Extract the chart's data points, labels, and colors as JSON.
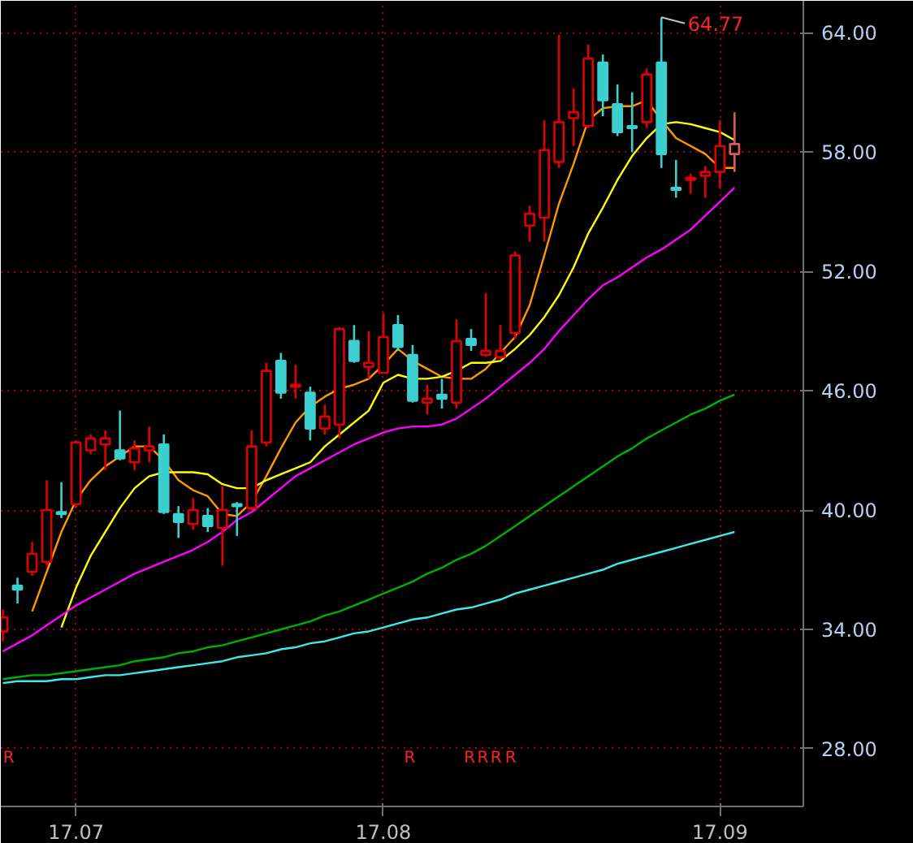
{
  "chart_data": {
    "type": "candlestick",
    "categories": [
      null,
      null,
      null,
      null,
      null,
      "17.07",
      null,
      null,
      null,
      null,
      null,
      null,
      null,
      null,
      null,
      null,
      null,
      null,
      null,
      null,
      null,
      null,
      null,
      null,
      null,
      null,
      "17.08",
      null,
      null,
      null,
      null,
      null,
      null,
      null,
      null,
      null,
      null,
      null,
      null,
      null,
      null,
      null,
      null,
      null,
      null,
      null,
      null,
      null,
      null,
      "17.09",
      null
    ],
    "ohlc": [
      [
        33.9,
        35.0,
        33.4,
        34.6
      ],
      [
        36.2,
        36.6,
        35.3,
        36.0
      ],
      [
        36.9,
        38.4,
        36.7,
        37.8
      ],
      [
        37.4,
        41.5,
        37.2,
        40.0
      ],
      [
        39.9,
        41.4,
        39.6,
        39.8
      ],
      [
        40.3,
        43.5,
        40.1,
        43.4
      ],
      [
        43.0,
        43.8,
        42.8,
        43.6
      ],
      [
        43.3,
        44.0,
        42.0,
        43.6
      ],
      [
        43.0,
        45.0,
        42.5,
        42.6
      ],
      [
        42.4,
        43.5,
        42.0,
        43.1
      ],
      [
        43.0,
        44.2,
        42.4,
        43.2
      ],
      [
        43.3,
        43.8,
        39.8,
        39.9
      ],
      [
        39.8,
        40.2,
        38.6,
        39.4
      ],
      [
        39.3,
        40.6,
        39.0,
        40.0
      ],
      [
        39.7,
        40.1,
        38.9,
        39.2
      ],
      [
        39.1,
        41.2,
        37.2,
        40.0
      ],
      [
        40.3,
        40.4,
        38.7,
        40.2
      ],
      [
        40.1,
        44.0,
        40.0,
        43.2
      ],
      [
        43.4,
        47.4,
        43.2,
        47.0
      ],
      [
        47.5,
        47.9,
        45.6,
        45.9
      ],
      [
        46.2,
        47.3,
        45.6,
        46.3
      ],
      [
        45.9,
        46.2,
        43.5,
        44.1
      ],
      [
        44.1,
        45.3,
        43.8,
        44.7
      ],
      [
        44.3,
        49.2,
        43.6,
        49.1
      ],
      [
        48.5,
        49.3,
        47.4,
        47.5
      ],
      [
        47.2,
        49.0,
        46.6,
        47.4
      ],
      [
        46.9,
        49.9,
        46.9,
        48.7
      ],
      [
        49.3,
        49.8,
        48.0,
        48.2
      ],
      [
        47.8,
        48.3,
        45.4,
        45.5
      ],
      [
        45.4,
        46.3,
        44.8,
        45.6
      ],
      [
        45.8,
        46.6,
        45.1,
        45.6
      ],
      [
        45.4,
        49.6,
        45.1,
        48.5
      ],
      [
        48.6,
        49.1,
        48.0,
        48.3
      ],
      [
        47.8,
        50.9,
        47.7,
        48.0
      ],
      [
        47.7,
        49.3,
        47.6,
        48.0
      ],
      [
        48.9,
        53.0,
        48.6,
        52.8
      ],
      [
        54.3,
        55.3,
        53.5,
        54.9
      ],
      [
        54.7,
        59.6,
        53.5,
        58.1
      ],
      [
        57.5,
        63.9,
        57.2,
        59.5
      ],
      [
        59.7,
        61.2,
        58.3,
        60.0
      ],
      [
        59.3,
        63.4,
        59.2,
        62.7
      ],
      [
        62.5,
        62.9,
        59.8,
        60.6
      ],
      [
        60.4,
        61.4,
        58.8,
        59.0
      ],
      [
        59.3,
        61.0,
        58.0,
        59.2
      ],
      [
        59.5,
        62.2,
        59.2,
        61.9
      ],
      [
        62.5,
        64.77,
        57.2,
        57.9
      ],
      [
        56.2,
        57.6,
        55.7,
        56.1
      ],
      [
        56.6,
        56.9,
        55.9,
        56.7
      ],
      [
        56.8,
        57.3,
        55.7,
        57.0
      ],
      [
        57.0,
        59.6,
        56.2,
        58.3
      ],
      [
        57.9,
        60.0,
        57.0,
        58.4
      ]
    ],
    "colors": [
      "#e00000",
      "#3ccfcf",
      "#e00000",
      "#e00000",
      "#3ccfcf",
      "#e00000",
      "#e00000",
      "#e00000",
      "#3ccfcf",
      "#e00000",
      "#e00000",
      "#3ccfcf",
      "#3ccfcf",
      "#e00000",
      "#3ccfcf",
      "#e00000",
      "#3ccfcf",
      "#e00000",
      "#e00000",
      "#3ccfcf",
      "#e00000",
      "#3ccfcf",
      "#e00000",
      "#e00000",
      "#3ccfcf",
      "#e00000",
      "#e00000",
      "#3ccfcf",
      "#3ccfcf",
      "#e00000",
      "#3ccfcf",
      "#e00000",
      "#3ccfcf",
      "#e00000",
      "#e00000",
      "#e00000",
      "#e00000",
      "#e00000",
      "#e00000",
      "#e00000",
      "#e00000",
      "#3ccfcf",
      "#3ccfcf",
      "#3ccfcf",
      "#e00000",
      "#3ccfcf",
      "#3ccfcf",
      "#e00000",
      "#e00000",
      "#e00000",
      "#e05858"
    ],
    "series": [
      {
        "type": "line",
        "color": "#ff9900",
        "values": [
          null,
          null,
          34.9,
          36.9,
          38.9,
          40.5,
          41.5,
          42.2,
          42.7,
          43.2,
          43.2,
          42.5,
          41.5,
          41.0,
          40.7,
          39.8,
          39.7,
          40.4,
          41.7,
          43.1,
          44.4,
          45.2,
          45.7,
          46.1,
          46.3,
          46.6,
          47.3,
          48.1,
          47.5,
          47.1,
          46.7,
          46.6,
          46.6,
          47.1,
          47.9,
          48.7,
          50.3,
          52.8,
          55.4,
          57.4,
          59.6,
          60.2,
          60.3,
          60.3,
          60.6,
          59.6,
          58.7,
          58.3,
          57.9,
          57.2,
          57.2
        ]
      },
      {
        "type": "line",
        "color": "#ffff00",
        "values": [
          null,
          null,
          null,
          null,
          34.1,
          36.1,
          37.7,
          38.9,
          40.1,
          41.1,
          41.7,
          41.9,
          41.9,
          41.9,
          41.8,
          41.3,
          41.1,
          41.1,
          41.5,
          41.8,
          42.1,
          42.4,
          43.2,
          43.8,
          44.4,
          45.0,
          46.4,
          46.8,
          46.6,
          46.6,
          46.7,
          47.0,
          47.4,
          47.4,
          47.5,
          48.1,
          48.8,
          49.7,
          50.8,
          52.2,
          53.9,
          55.2,
          56.6,
          57.8,
          58.7,
          59.4,
          59.5,
          59.4,
          59.2,
          59.0,
          58.6
        ]
      },
      {
        "type": "line",
        "color": "#ff00ff",
        "values": [
          32.9,
          33.3,
          33.7,
          34.2,
          34.7,
          35.2,
          35.6,
          36.0,
          36.4,
          36.8,
          37.1,
          37.4,
          37.7,
          38.0,
          38.4,
          38.9,
          39.5,
          39.9,
          40.5,
          41.1,
          41.7,
          42.1,
          42.5,
          42.9,
          43.3,
          43.6,
          43.9,
          44.1,
          44.2,
          44.2,
          44.3,
          44.6,
          45.1,
          45.6,
          46.2,
          46.8,
          47.4,
          48.1,
          49.0,
          49.8,
          50.6,
          51.3,
          51.7,
          52.2,
          52.7,
          53.1,
          53.6,
          54.1,
          54.8,
          55.5,
          56.2
        ]
      },
      {
        "type": "line",
        "color": "#00b000",
        "values": [
          31.5,
          31.6,
          31.7,
          31.7,
          31.8,
          31.9,
          32.0,
          32.1,
          32.2,
          32.4,
          32.5,
          32.6,
          32.8,
          32.9,
          33.1,
          33.2,
          33.4,
          33.6,
          33.8,
          34.0,
          34.2,
          34.4,
          34.7,
          34.9,
          35.2,
          35.5,
          35.8,
          36.1,
          36.4,
          36.8,
          37.1,
          37.5,
          37.8,
          38.2,
          38.7,
          39.2,
          39.7,
          40.2,
          40.7,
          41.2,
          41.7,
          42.2,
          42.7,
          43.1,
          43.6,
          44.0,
          44.4,
          44.8,
          45.1,
          45.5,
          45.8
        ]
      },
      {
        "type": "line",
        "color": "#40e8e8",
        "values": [
          31.3,
          31.4,
          31.4,
          31.4,
          31.5,
          31.5,
          31.6,
          31.7,
          31.7,
          31.8,
          31.9,
          32.0,
          32.1,
          32.2,
          32.3,
          32.4,
          32.6,
          32.7,
          32.8,
          33.0,
          33.1,
          33.3,
          33.4,
          33.6,
          33.8,
          33.9,
          34.1,
          34.3,
          34.5,
          34.6,
          34.8,
          35.0,
          35.1,
          35.3,
          35.5,
          35.8,
          36.0,
          36.2,
          36.4,
          36.6,
          36.8,
          37.0,
          37.3,
          37.5,
          37.7,
          37.9,
          38.1,
          38.3,
          38.5,
          38.7,
          38.9
        ]
      }
    ],
    "ylim": [
      25.1,
      65.6
    ],
    "yticks": [
      {
        "value": 28,
        "label": "28.00"
      },
      {
        "value": 34,
        "label": "34.00"
      },
      {
        "value": 40,
        "label": "40.00"
      },
      {
        "value": 46,
        "label": "46.00"
      },
      {
        "value": 52,
        "label": "52.00"
      },
      {
        "value": 58,
        "label": "58.00"
      },
      {
        "value": 64,
        "label": "64.00"
      }
    ],
    "grid": true,
    "annotations": [
      "64.77",
      "R",
      "R",
      "R",
      "R",
      "R",
      "R"
    ]
  }
}
